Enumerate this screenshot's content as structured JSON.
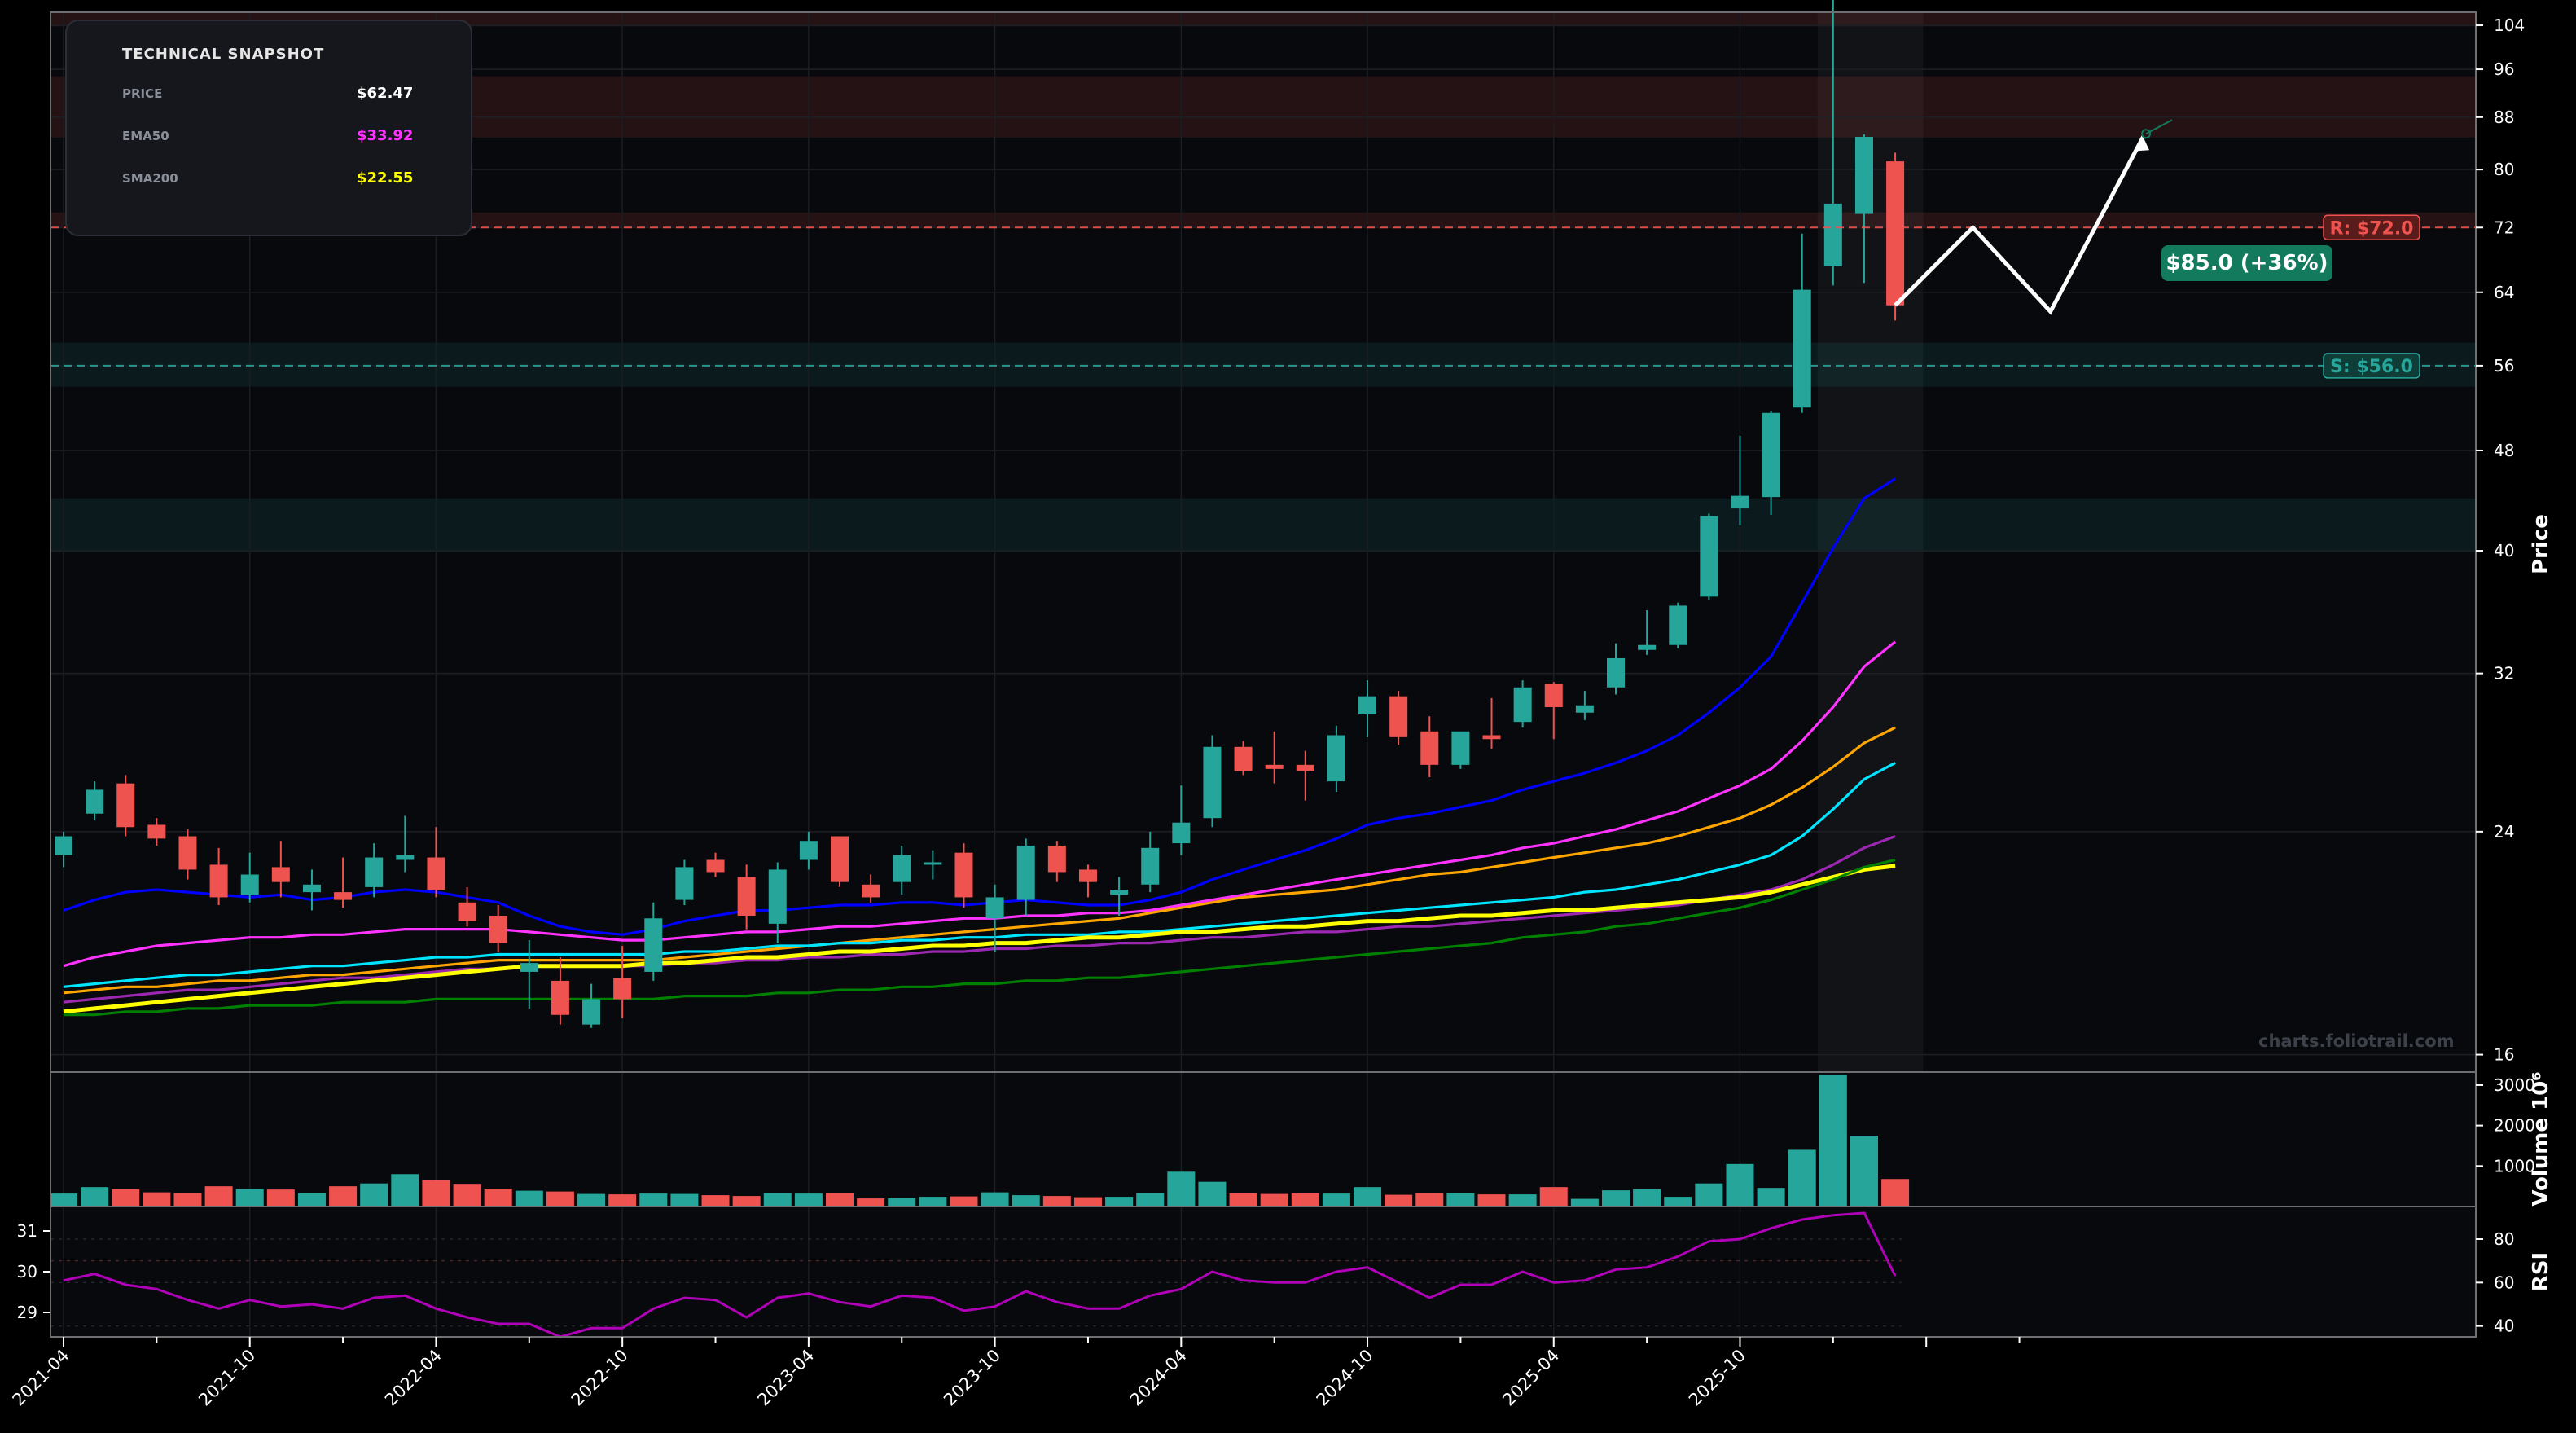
{
  "snapshot": {
    "title": "TECHNICAL SNAPSHOT",
    "rows": [
      {
        "key": "PRICE",
        "value": "$62.47",
        "color": "#ffffff"
      },
      {
        "key": "EMA50",
        "value": "$33.92",
        "color": "#ff33ff"
      },
      {
        "key": "SMA200",
        "value": "$22.55",
        "color": "#ffff00"
      }
    ]
  },
  "watermark": "charts.foliotrail.com",
  "colors": {
    "up": "#26a69a",
    "down": "#ef5350",
    "background": "#07090c",
    "resistance": "#ef5350",
    "support": "#26a69a",
    "forecast": "#ffffff",
    "target_badge": "#137a5e"
  },
  "chart_data": {
    "type": "candlestick",
    "price_axis": {
      "label": "Price",
      "ticks": [
        16,
        24,
        32,
        40,
        48,
        56,
        64,
        72,
        80,
        88,
        96,
        104
      ],
      "range": [
        15.5,
        106.5
      ],
      "scale": "log"
    },
    "volume_axis": {
      "label": "Volume  10⁶",
      "ticks": [
        1000,
        2000,
        3000
      ],
      "range": [
        0,
        3200
      ]
    },
    "rsi_axis": {
      "label": "RSI",
      "right_ticks": [
        40,
        60,
        80
      ],
      "left_ticks": [
        29,
        30,
        31
      ],
      "range": [
        35,
        95
      ]
    },
    "x_tick_labels": [
      "2021-04",
      "2021-10",
      "2022-04",
      "2022-10",
      "2023-04",
      "2023-10",
      "2024-04",
      "2024-10",
      "2025-04",
      "2025-10"
    ],
    "candles": [
      [
        23.0,
        24.0,
        22.5,
        23.8
      ],
      [
        24.8,
        26.3,
        24.5,
        25.9
      ],
      [
        26.2,
        26.6,
        23.8,
        24.2
      ],
      [
        24.3,
        24.6,
        23.4,
        23.7
      ],
      [
        23.8,
        24.1,
        22.0,
        22.4
      ],
      [
        22.6,
        23.3,
        21.0,
        21.3
      ],
      [
        21.4,
        23.1,
        21.1,
        22.2
      ],
      [
        22.5,
        23.6,
        21.3,
        21.9
      ],
      [
        21.5,
        22.4,
        20.8,
        21.8
      ],
      [
        21.5,
        22.9,
        20.9,
        21.2
      ],
      [
        21.7,
        23.5,
        21.3,
        22.9
      ],
      [
        22.8,
        24.7,
        22.3,
        23.0
      ],
      [
        22.9,
        24.2,
        21.3,
        21.6
      ],
      [
        21.1,
        21.7,
        20.2,
        20.4
      ],
      [
        20.6,
        21.0,
        19.3,
        19.6
      ],
      [
        18.6,
        19.7,
        17.4,
        18.9
      ],
      [
        18.3,
        19.1,
        16.9,
        17.2
      ],
      [
        16.9,
        18.2,
        16.8,
        17.7
      ],
      [
        18.4,
        19.5,
        17.1,
        17.7
      ],
      [
        18.6,
        21.1,
        18.3,
        20.5
      ],
      [
        21.2,
        22.8,
        21.0,
        22.5
      ],
      [
        22.8,
        23.1,
        22.1,
        22.3
      ],
      [
        22.1,
        22.6,
        20.1,
        20.6
      ],
      [
        20.3,
        22.7,
        19.6,
        22.4
      ],
      [
        22.8,
        24.0,
        22.4,
        23.6
      ],
      [
        23.8,
        23.8,
        21.7,
        21.9
      ],
      [
        21.8,
        22.2,
        21.1,
        21.3
      ],
      [
        21.9,
        23.4,
        21.4,
        23.0
      ],
      [
        22.6,
        23.2,
        22.0,
        22.7
      ],
      [
        23.1,
        23.5,
        20.9,
        21.3
      ],
      [
        20.5,
        21.8,
        19.3,
        21.3
      ],
      [
        21.2,
        23.7,
        20.6,
        23.4
      ],
      [
        23.4,
        23.6,
        21.9,
        22.3
      ],
      [
        22.4,
        22.6,
        21.3,
        21.9
      ],
      [
        21.4,
        22.1,
        20.6,
        21.6
      ],
      [
        21.8,
        24.0,
        21.5,
        23.3
      ],
      [
        23.5,
        26.1,
        23.0,
        24.4
      ],
      [
        24.6,
        28.6,
        24.2,
        28.0
      ],
      [
        28.0,
        28.3,
        26.6,
        26.8
      ],
      [
        27.1,
        28.8,
        26.2,
        26.9
      ],
      [
        27.1,
        27.8,
        25.4,
        26.8
      ],
      [
        26.3,
        29.1,
        25.8,
        28.6
      ],
      [
        29.7,
        31.6,
        28.5,
        30.7
      ],
      [
        30.7,
        31.0,
        28.1,
        28.5
      ],
      [
        28.8,
        29.6,
        26.5,
        27.1
      ],
      [
        27.1,
        28.5,
        26.9,
        28.8
      ],
      [
        28.6,
        30.6,
        27.9,
        28.4
      ],
      [
        29.3,
        31.6,
        29.0,
        31.2
      ],
      [
        31.4,
        31.5,
        28.4,
        30.1
      ],
      [
        29.8,
        31.0,
        29.4,
        30.2
      ],
      [
        31.2,
        33.8,
        30.8,
        32.9
      ],
      [
        33.4,
        35.9,
        33.1,
        33.7
      ],
      [
        33.7,
        36.4,
        33.5,
        36.2
      ],
      [
        36.8,
        42.8,
        36.6,
        42.6
      ],
      [
        43.2,
        49.3,
        41.9,
        44.2
      ],
      [
        44.1,
        51.6,
        42.7,
        51.4
      ],
      [
        51.9,
        71.2,
        51.4,
        64.3
      ],
      [
        67.1,
        109.3,
        64.8,
        75.2
      ],
      [
        73.8,
        85.3,
        65.1,
        84.9
      ],
      [
        81.2,
        82.5,
        60.8,
        62.5
      ]
    ],
    "volume": [
      320,
      480,
      430,
      350,
      340,
      500,
      430,
      420,
      330,
      500,
      570,
      800,
      650,
      560,
      440,
      390,
      370,
      310,
      300,
      320,
      310,
      280,
      260,
      340,
      320,
      340,
      200,
      210,
      240,
      250,
      350,
      280,
      260,
      230,
      240,
      340,
      860,
      610,
      330,
      310,
      330,
      320,
      480,
      290,
      340,
      330,
      300,
      300,
      480,
      190,
      400,
      430,
      240,
      570,
      1050,
      460,
      1400,
      3250,
      1750,
      680
    ],
    "series": [
      {
        "name": "EMA20",
        "color": "#0000ff",
        "values": [
          20.8,
          21.2,
          21.5,
          21.6,
          21.5,
          21.4,
          21.3,
          21.4,
          21.2,
          21.3,
          21.5,
          21.6,
          21.5,
          21.3,
          21.1,
          20.6,
          20.2,
          20.0,
          19.9,
          20.1,
          20.4,
          20.6,
          20.8,
          20.8,
          20.9,
          21.0,
          21.0,
          21.1,
          21.1,
          21.0,
          21.1,
          21.2,
          21.1,
          21.0,
          21.0,
          21.2,
          21.5,
          22.0,
          22.4,
          22.8,
          23.2,
          23.7,
          24.3,
          24.6,
          24.8,
          25.1,
          25.4,
          25.9,
          26.3,
          26.7,
          27.2,
          27.8,
          28.6,
          29.8,
          31.2,
          33.0,
          36.4,
          40.2,
          44.0,
          45.6
        ]
      },
      {
        "name": "EMA50",
        "color": "#ff33ff",
        "values": [
          18.8,
          19.1,
          19.3,
          19.5,
          19.6,
          19.7,
          19.8,
          19.8,
          19.9,
          19.9,
          20.0,
          20.1,
          20.1,
          20.1,
          20.1,
          20.0,
          19.9,
          19.8,
          19.7,
          19.7,
          19.8,
          19.9,
          20.0,
          20.0,
          20.1,
          20.2,
          20.2,
          20.3,
          20.4,
          20.5,
          20.5,
          20.6,
          20.6,
          20.7,
          20.7,
          20.8,
          21.0,
          21.2,
          21.4,
          21.6,
          21.8,
          22.0,
          22.2,
          22.4,
          22.6,
          22.8,
          23.0,
          23.3,
          23.5,
          23.8,
          24.1,
          24.5,
          24.9,
          25.5,
          26.1,
          26.9,
          28.3,
          30.1,
          32.4,
          33.9
        ]
      },
      {
        "name": "Orange MA",
        "color": "#ffa500",
        "values": [
          17.9,
          18.0,
          18.1,
          18.1,
          18.2,
          18.3,
          18.3,
          18.4,
          18.5,
          18.5,
          18.6,
          18.7,
          18.8,
          18.9,
          19.0,
          19.0,
          19.0,
          19.0,
          19.0,
          19.0,
          19.1,
          19.2,
          19.3,
          19.4,
          19.5,
          19.6,
          19.7,
          19.8,
          19.9,
          20.0,
          20.1,
          20.2,
          20.3,
          20.4,
          20.5,
          20.7,
          20.9,
          21.1,
          21.3,
          21.4,
          21.5,
          21.6,
          21.8,
          22.0,
          22.2,
          22.3,
          22.5,
          22.7,
          22.9,
          23.1,
          23.3,
          23.5,
          23.8,
          24.2,
          24.6,
          25.2,
          26.0,
          27.0,
          28.2,
          29.0
        ]
      },
      {
        "name": "Cyan MA",
        "color": "#00e5ff",
        "values": [
          18.1,
          18.2,
          18.3,
          18.4,
          18.5,
          18.5,
          18.6,
          18.7,
          18.8,
          18.8,
          18.9,
          19.0,
          19.1,
          19.1,
          19.2,
          19.2,
          19.2,
          19.2,
          19.2,
          19.2,
          19.3,
          19.3,
          19.4,
          19.5,
          19.5,
          19.6,
          19.6,
          19.7,
          19.7,
          19.8,
          19.8,
          19.9,
          19.9,
          19.9,
          20.0,
          20.0,
          20.1,
          20.2,
          20.3,
          20.4,
          20.5,
          20.6,
          20.7,
          20.8,
          20.9,
          21.0,
          21.1,
          21.2,
          21.3,
          21.5,
          21.6,
          21.8,
          22.0,
          22.3,
          22.6,
          23.0,
          23.8,
          25.0,
          26.4,
          27.2
        ]
      },
      {
        "name": "Purple MA",
        "color": "#9c27b0",
        "values": [
          17.6,
          17.7,
          17.8,
          17.9,
          18.0,
          18.0,
          18.1,
          18.2,
          18.3,
          18.4,
          18.4,
          18.5,
          18.6,
          18.7,
          18.7,
          18.8,
          18.8,
          18.8,
          18.8,
          18.8,
          18.9,
          18.9,
          19.0,
          19.0,
          19.1,
          19.1,
          19.2,
          19.2,
          19.3,
          19.3,
          19.4,
          19.4,
          19.5,
          19.5,
          19.6,
          19.6,
          19.7,
          19.8,
          19.8,
          19.9,
          20.0,
          20.0,
          20.1,
          20.2,
          20.2,
          20.3,
          20.4,
          20.5,
          20.6,
          20.7,
          20.8,
          20.9,
          21.0,
          21.2,
          21.4,
          21.6,
          22.0,
          22.6,
          23.3,
          23.8
        ]
      },
      {
        "name": "SMA200",
        "color": "#ffff00",
        "values": [
          17.3,
          17.4,
          17.5,
          17.6,
          17.7,
          17.8,
          17.9,
          18.0,
          18.1,
          18.2,
          18.3,
          18.4,
          18.5,
          18.6,
          18.7,
          18.8,
          18.8,
          18.8,
          18.8,
          18.9,
          18.9,
          19.0,
          19.1,
          19.1,
          19.2,
          19.3,
          19.3,
          19.4,
          19.5,
          19.5,
          19.6,
          19.6,
          19.7,
          19.8,
          19.8,
          19.9,
          20.0,
          20.0,
          20.1,
          20.2,
          20.2,
          20.3,
          20.4,
          20.4,
          20.5,
          20.6,
          20.6,
          20.7,
          20.8,
          20.8,
          20.9,
          21.0,
          21.1,
          21.2,
          21.3,
          21.5,
          21.8,
          22.1,
          22.4,
          22.55
        ]
      },
      {
        "name": "Green MA",
        "color": "#008000",
        "values": [
          17.2,
          17.2,
          17.3,
          17.3,
          17.4,
          17.4,
          17.5,
          17.5,
          17.5,
          17.6,
          17.6,
          17.6,
          17.7,
          17.7,
          17.7,
          17.7,
          17.7,
          17.7,
          17.7,
          17.7,
          17.8,
          17.8,
          17.8,
          17.9,
          17.9,
          18.0,
          18.0,
          18.1,
          18.1,
          18.2,
          18.2,
          18.3,
          18.3,
          18.4,
          18.4,
          18.5,
          18.6,
          18.7,
          18.8,
          18.9,
          19.0,
          19.1,
          19.2,
          19.3,
          19.4,
          19.5,
          19.6,
          19.8,
          19.9,
          20.0,
          20.2,
          20.3,
          20.5,
          20.7,
          20.9,
          21.2,
          21.6,
          22.0,
          22.5,
          22.8
        ]
      }
    ],
    "rsi": {
      "color": "#b000b8",
      "values": [
        61,
        64,
        59,
        57,
        52,
        48,
        52,
        49,
        50,
        48,
        53,
        54,
        48,
        44,
        41,
        41,
        35,
        39,
        39,
        48,
        53,
        52,
        44,
        53,
        55,
        51,
        49,
        54,
        53,
        47,
        49,
        56,
        51,
        48,
        48,
        54,
        57,
        65,
        61,
        60,
        60,
        65,
        67,
        60,
        53,
        59,
        59,
        65,
        60,
        61,
        66,
        67,
        72,
        79,
        80,
        85,
        89,
        91,
        92,
        63
      ]
    },
    "levels": {
      "resistance": {
        "value": 72.0,
        "label": "R: $72.0"
      },
      "support": {
        "value": 56.0,
        "label": "S: $56.0"
      }
    },
    "zones": [
      {
        "type": "resistance",
        "from": 103.8,
        "to": 109.0
      },
      {
        "type": "resistance",
        "from": 84.8,
        "to": 94.8
      },
      {
        "type": "resistance",
        "from": 71.9,
        "to": 74.0
      },
      {
        "type": "support",
        "from": 53.9,
        "to": 58.4
      },
      {
        "type": "support",
        "from": 39.9,
        "to": 44.0
      }
    ],
    "forecast": {
      "points": [
        [
          59,
          62.5
        ],
        [
          61.5,
          72.0
        ],
        [
          64,
          61.8
        ],
        [
          67.0,
          85.0
        ]
      ],
      "target_label": "$85.0 (+36%)"
    }
  }
}
